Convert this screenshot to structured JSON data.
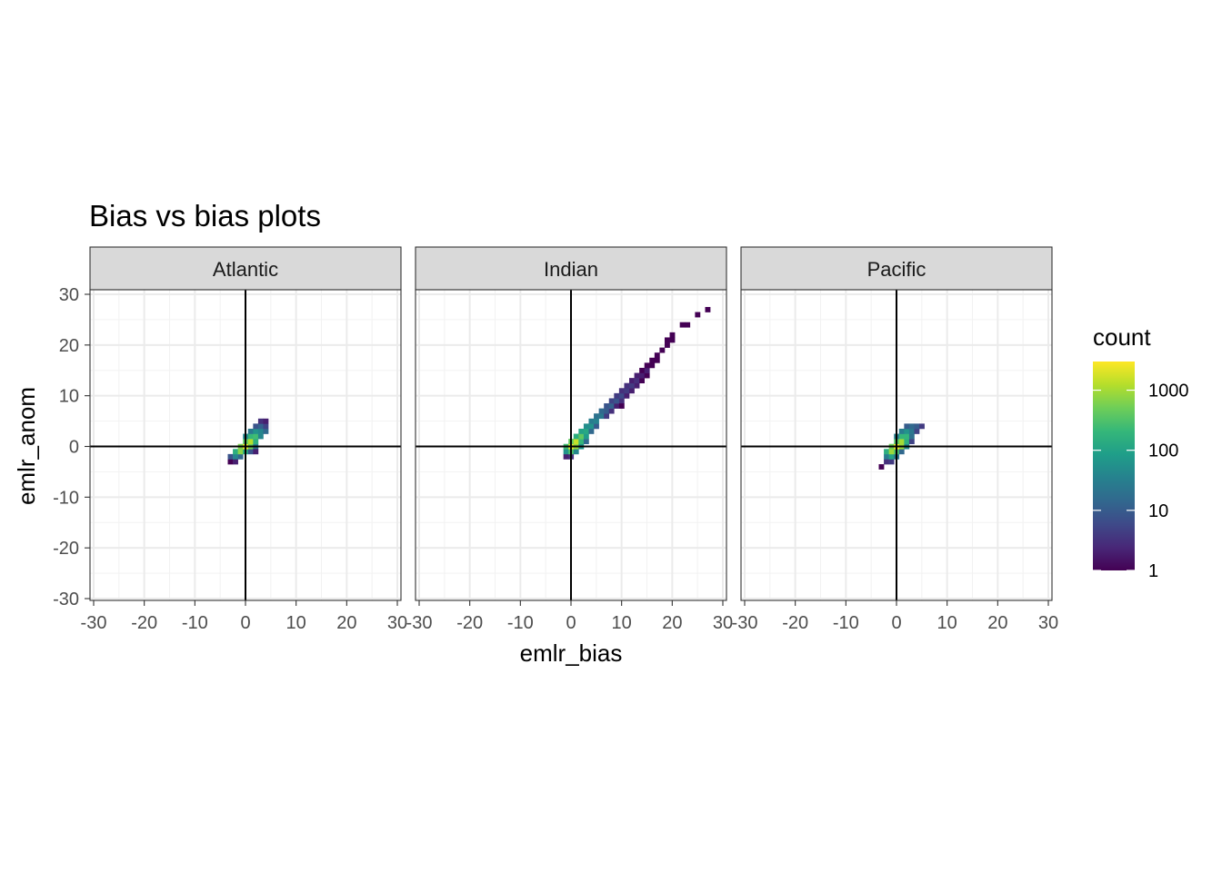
{
  "chart_data": {
    "type": "heatmap",
    "title": "Bias vs bias plots",
    "xlabel": "emlr_bias",
    "ylabel": "emlr_anom",
    "xlim": [
      -30,
      30
    ],
    "ylim": [
      -30,
      30
    ],
    "x_ticks": [
      -30,
      -20,
      -10,
      0,
      10,
      20,
      30
    ],
    "y_ticks": [
      -30,
      -20,
      -10,
      0,
      10,
      20,
      30
    ],
    "x_tick_labels": [
      "-30",
      "-20",
      "-10",
      "0",
      "10",
      "20",
      "30"
    ],
    "y_tick_labels": [
      "-30",
      "-20",
      "-10",
      "0",
      "10",
      "20",
      "30"
    ],
    "reference_lines": {
      "x": 0,
      "y": 0
    },
    "grid": true,
    "bin_width": 1,
    "legend": {
      "title": "count",
      "scale": "log10",
      "placement": "right",
      "breaks": [
        1,
        10,
        100,
        1000
      ],
      "break_labels": [
        "1",
        "10",
        "100",
        "1000"
      ],
      "max": 3000,
      "colors": [
        "#440154",
        "#482878",
        "#3e4a89",
        "#31688e",
        "#26828e",
        "#1f9e89",
        "#35b779",
        "#6ece58",
        "#b5de2b",
        "#fde725"
      ]
    },
    "facets": [
      {
        "name": "Atlantic",
        "bins": [
          {
            "x": -3,
            "y": -3,
            "count": 1
          },
          {
            "x": -2,
            "y": -3,
            "count": 2
          },
          {
            "x": -3,
            "y": -2,
            "count": 8
          },
          {
            "x": -2,
            "y": -2,
            "count": 40
          },
          {
            "x": -1,
            "y": -2,
            "count": 15
          },
          {
            "x": -2,
            "y": -1,
            "count": 150
          },
          {
            "x": -1,
            "y": -1,
            "count": 700
          },
          {
            "x": 0,
            "y": -1,
            "count": 120
          },
          {
            "x": 1,
            "y": -1,
            "count": 8
          },
          {
            "x": -1,
            "y": 0,
            "count": 600
          },
          {
            "x": 0,
            "y": 0,
            "count": 3000
          },
          {
            "x": 1,
            "y": 0,
            "count": 500
          },
          {
            "x": 2,
            "y": 0,
            "count": 25
          },
          {
            "x": 0,
            "y": 1,
            "count": 400
          },
          {
            "x": 1,
            "y": 1,
            "count": 1200
          },
          {
            "x": 2,
            "y": 1,
            "count": 150
          },
          {
            "x": 0,
            "y": 2,
            "count": 40
          },
          {
            "x": 1,
            "y": 2,
            "count": 200
          },
          {
            "x": 2,
            "y": 2,
            "count": 250
          },
          {
            "x": 3,
            "y": 2,
            "count": 40
          },
          {
            "x": 1,
            "y": 3,
            "count": 25
          },
          {
            "x": 2,
            "y": 3,
            "count": 60
          },
          {
            "x": 3,
            "y": 3,
            "count": 40
          },
          {
            "x": 4,
            "y": 3,
            "count": 15
          },
          {
            "x": 2,
            "y": 4,
            "count": 8
          },
          {
            "x": 3,
            "y": 4,
            "count": 12
          },
          {
            "x": 4,
            "y": 4,
            "count": 5
          },
          {
            "x": 3,
            "y": 5,
            "count": 3
          },
          {
            "x": 4,
            "y": 5,
            "count": 2
          },
          {
            "x": 2,
            "y": -1,
            "count": 2
          }
        ]
      },
      {
        "name": "Indian",
        "bins": [
          {
            "x": -1,
            "y": -2,
            "count": 2
          },
          {
            "x": 0,
            "y": -2,
            "count": 3
          },
          {
            "x": -1,
            "y": -1,
            "count": 60
          },
          {
            "x": 0,
            "y": -1,
            "count": 300
          },
          {
            "x": 1,
            "y": -1,
            "count": 40
          },
          {
            "x": -1,
            "y": 0,
            "count": 250
          },
          {
            "x": 0,
            "y": 0,
            "count": 2500
          },
          {
            "x": 1,
            "y": 0,
            "count": 800
          },
          {
            "x": 2,
            "y": 0,
            "count": 60
          },
          {
            "x": 0,
            "y": 1,
            "count": 400
          },
          {
            "x": 1,
            "y": 1,
            "count": 1500
          },
          {
            "x": 2,
            "y": 1,
            "count": 200
          },
          {
            "x": 3,
            "y": 1,
            "count": 15
          },
          {
            "x": 1,
            "y": 2,
            "count": 150
          },
          {
            "x": 2,
            "y": 2,
            "count": 400
          },
          {
            "x": 3,
            "y": 2,
            "count": 80
          },
          {
            "x": 2,
            "y": 3,
            "count": 100
          },
          {
            "x": 3,
            "y": 3,
            "count": 120
          },
          {
            "x": 4,
            "y": 3,
            "count": 15
          },
          {
            "x": 3,
            "y": 4,
            "count": 50
          },
          {
            "x": 4,
            "y": 4,
            "count": 60
          },
          {
            "x": 5,
            "y": 4,
            "count": 10
          },
          {
            "x": 4,
            "y": 5,
            "count": 30
          },
          {
            "x": 5,
            "y": 5,
            "count": 35
          },
          {
            "x": 5,
            "y": 6,
            "count": 20
          },
          {
            "x": 6,
            "y": 6,
            "count": 25
          },
          {
            "x": 7,
            "y": 6,
            "count": 4
          },
          {
            "x": 6,
            "y": 7,
            "count": 15
          },
          {
            "x": 7,
            "y": 7,
            "count": 10
          },
          {
            "x": 8,
            "y": 7,
            "count": 3
          },
          {
            "x": 7,
            "y": 8,
            "count": 8
          },
          {
            "x": 8,
            "y": 8,
            "count": 12
          },
          {
            "x": 9,
            "y": 8,
            "count": 2
          },
          {
            "x": 8,
            "y": 9,
            "count": 5
          },
          {
            "x": 9,
            "y": 9,
            "count": 8
          },
          {
            "x": 10,
            "y": 9,
            "count": 3
          },
          {
            "x": 9,
            "y": 10,
            "count": 4
          },
          {
            "x": 10,
            "y": 10,
            "count": 6
          },
          {
            "x": 11,
            "y": 10,
            "count": 2
          },
          {
            "x": 10,
            "y": 8,
            "count": 1
          },
          {
            "x": 10,
            "y": 11,
            "count": 3
          },
          {
            "x": 11,
            "y": 11,
            "count": 4
          },
          {
            "x": 12,
            "y": 11,
            "count": 2
          },
          {
            "x": 11,
            "y": 12,
            "count": 3
          },
          {
            "x": 12,
            "y": 12,
            "count": 4
          },
          {
            "x": 13,
            "y": 12,
            "count": 2
          },
          {
            "x": 12,
            "y": 13,
            "count": 2
          },
          {
            "x": 13,
            "y": 13,
            "count": 3
          },
          {
            "x": 14,
            "y": 13,
            "count": 1
          },
          {
            "x": 13,
            "y": 14,
            "count": 2
          },
          {
            "x": 14,
            "y": 14,
            "count": 2
          },
          {
            "x": 15,
            "y": 14,
            "count": 1
          },
          {
            "x": 14,
            "y": 15,
            "count": 1
          },
          {
            "x": 15,
            "y": 15,
            "count": 2
          },
          {
            "x": 15,
            "y": 16,
            "count": 1
          },
          {
            "x": 16,
            "y": 16,
            "count": 1
          },
          {
            "x": 16,
            "y": 17,
            "count": 1
          },
          {
            "x": 17,
            "y": 17,
            "count": 1
          },
          {
            "x": 17,
            "y": 18,
            "count": 1
          },
          {
            "x": 18,
            "y": 19,
            "count": 1
          },
          {
            "x": 19,
            "y": 20,
            "count": 1
          },
          {
            "x": 19,
            "y": 21,
            "count": 1
          },
          {
            "x": 20,
            "y": 22,
            "count": 1
          },
          {
            "x": 20,
            "y": 21,
            "count": 1
          },
          {
            "x": 22,
            "y": 24,
            "count": 1
          },
          {
            "x": 23,
            "y": 24,
            "count": 1
          },
          {
            "x": 25,
            "y": 26,
            "count": 1
          },
          {
            "x": 27,
            "y": 27,
            "count": 1
          }
        ]
      },
      {
        "name": "Pacific",
        "bins": [
          {
            "x": -3,
            "y": -4,
            "count": 1
          },
          {
            "x": -2,
            "y": -3,
            "count": 3
          },
          {
            "x": -1,
            "y": -3,
            "count": 4
          },
          {
            "x": -2,
            "y": -2,
            "count": 30
          },
          {
            "x": -1,
            "y": -2,
            "count": 100
          },
          {
            "x": 0,
            "y": -2,
            "count": 20
          },
          {
            "x": -2,
            "y": -1,
            "count": 150
          },
          {
            "x": -1,
            "y": -1,
            "count": 900
          },
          {
            "x": 0,
            "y": -1,
            "count": 300
          },
          {
            "x": 1,
            "y": -1,
            "count": 15
          },
          {
            "x": -1,
            "y": 0,
            "count": 500
          },
          {
            "x": 0,
            "y": 0,
            "count": 3000
          },
          {
            "x": 1,
            "y": 0,
            "count": 900
          },
          {
            "x": 2,
            "y": 0,
            "count": 40
          },
          {
            "x": 0,
            "y": 1,
            "count": 350
          },
          {
            "x": 1,
            "y": 1,
            "count": 1000
          },
          {
            "x": 2,
            "y": 1,
            "count": 150
          },
          {
            "x": 3,
            "y": 1,
            "count": 5
          },
          {
            "x": 0,
            "y": 2,
            "count": 30
          },
          {
            "x": 1,
            "y": 2,
            "count": 200
          },
          {
            "x": 2,
            "y": 2,
            "count": 200
          },
          {
            "x": 3,
            "y": 2,
            "count": 20
          },
          {
            "x": 1,
            "y": 3,
            "count": 30
          },
          {
            "x": 2,
            "y": 3,
            "count": 60
          },
          {
            "x": 3,
            "y": 3,
            "count": 25
          },
          {
            "x": 4,
            "y": 3,
            "count": 5
          },
          {
            "x": 2,
            "y": 4,
            "count": 10
          },
          {
            "x": 3,
            "y": 4,
            "count": 15
          },
          {
            "x": 4,
            "y": 4,
            "count": 10
          },
          {
            "x": 5,
            "y": 4,
            "count": 4
          }
        ]
      }
    ]
  }
}
